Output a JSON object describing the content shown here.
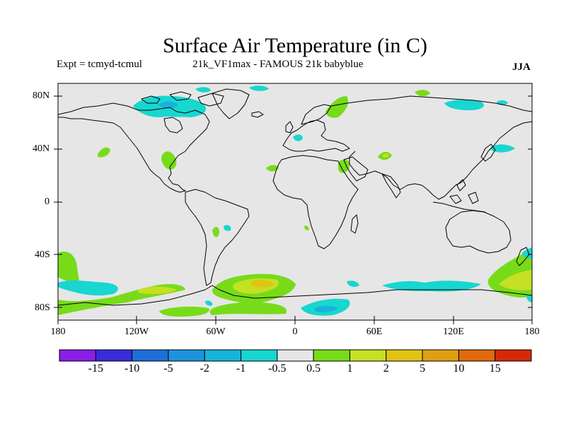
{
  "title": "Surface Air Temperature (in C)",
  "expt_label": "Expt = tcmyd-tcmul",
  "subtitle": "21k_VF1max - FAMOUS 21k babyblue",
  "season": "JJA",
  "lat_labels": [
    "80N",
    "40N",
    "0",
    "40S",
    "80S"
  ],
  "lon_labels": [
    "180",
    "120W",
    "60W",
    "0",
    "60E",
    "120E",
    "180"
  ],
  "colorbar": {
    "tick_labels": [
      "-15",
      "-10",
      "-5",
      "-2",
      "-1",
      "-0.5",
      "0.5",
      "1",
      "2",
      "5",
      "10",
      "15"
    ],
    "colors": [
      "#8a1ee6",
      "#3a2cd8",
      "#1f6fd8",
      "#1e93dc",
      "#16b4d8",
      "#18d6d0",
      "#e6e6e6",
      "#77db1a",
      "#c6e024",
      "#e0c415",
      "#e09f12",
      "#e06a0e",
      "#d42a0a"
    ]
  },
  "map": {
    "background_color": "#e6e6e6",
    "coastline_color": "#000000",
    "lon_range": [
      -180,
      180
    ],
    "lat_range": [
      -90,
      90
    ]
  }
}
